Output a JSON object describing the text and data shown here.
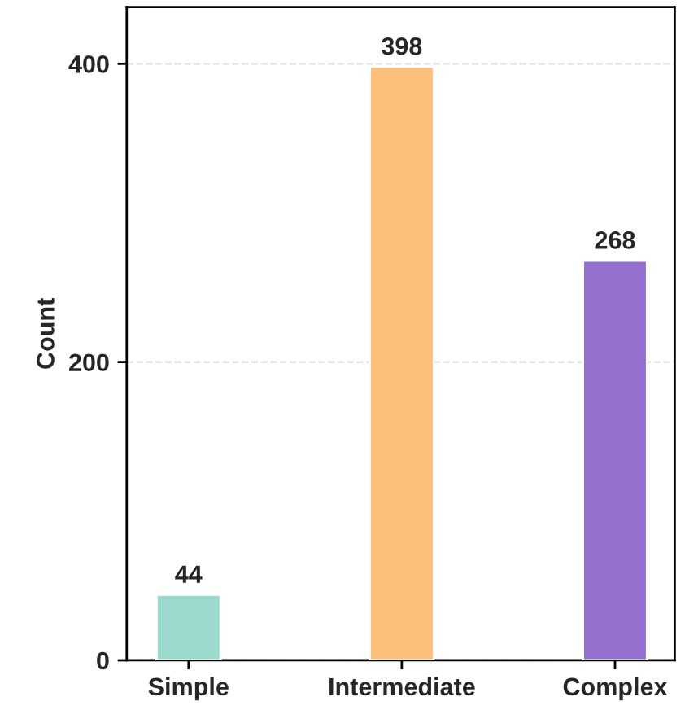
{
  "chart_data": {
    "type": "bar",
    "ylabel": "Count",
    "categories": [
      "Simple",
      "Intermediate",
      "Complex"
    ],
    "values": [
      44,
      398,
      268
    ],
    "colors": [
      "#9ad9cc",
      "#fdbf7a",
      "#9370cc"
    ],
    "ylim": [
      0,
      438
    ],
    "yticks": [
      0,
      200,
      400
    ],
    "grid": "y",
    "data_labels": true
  }
}
